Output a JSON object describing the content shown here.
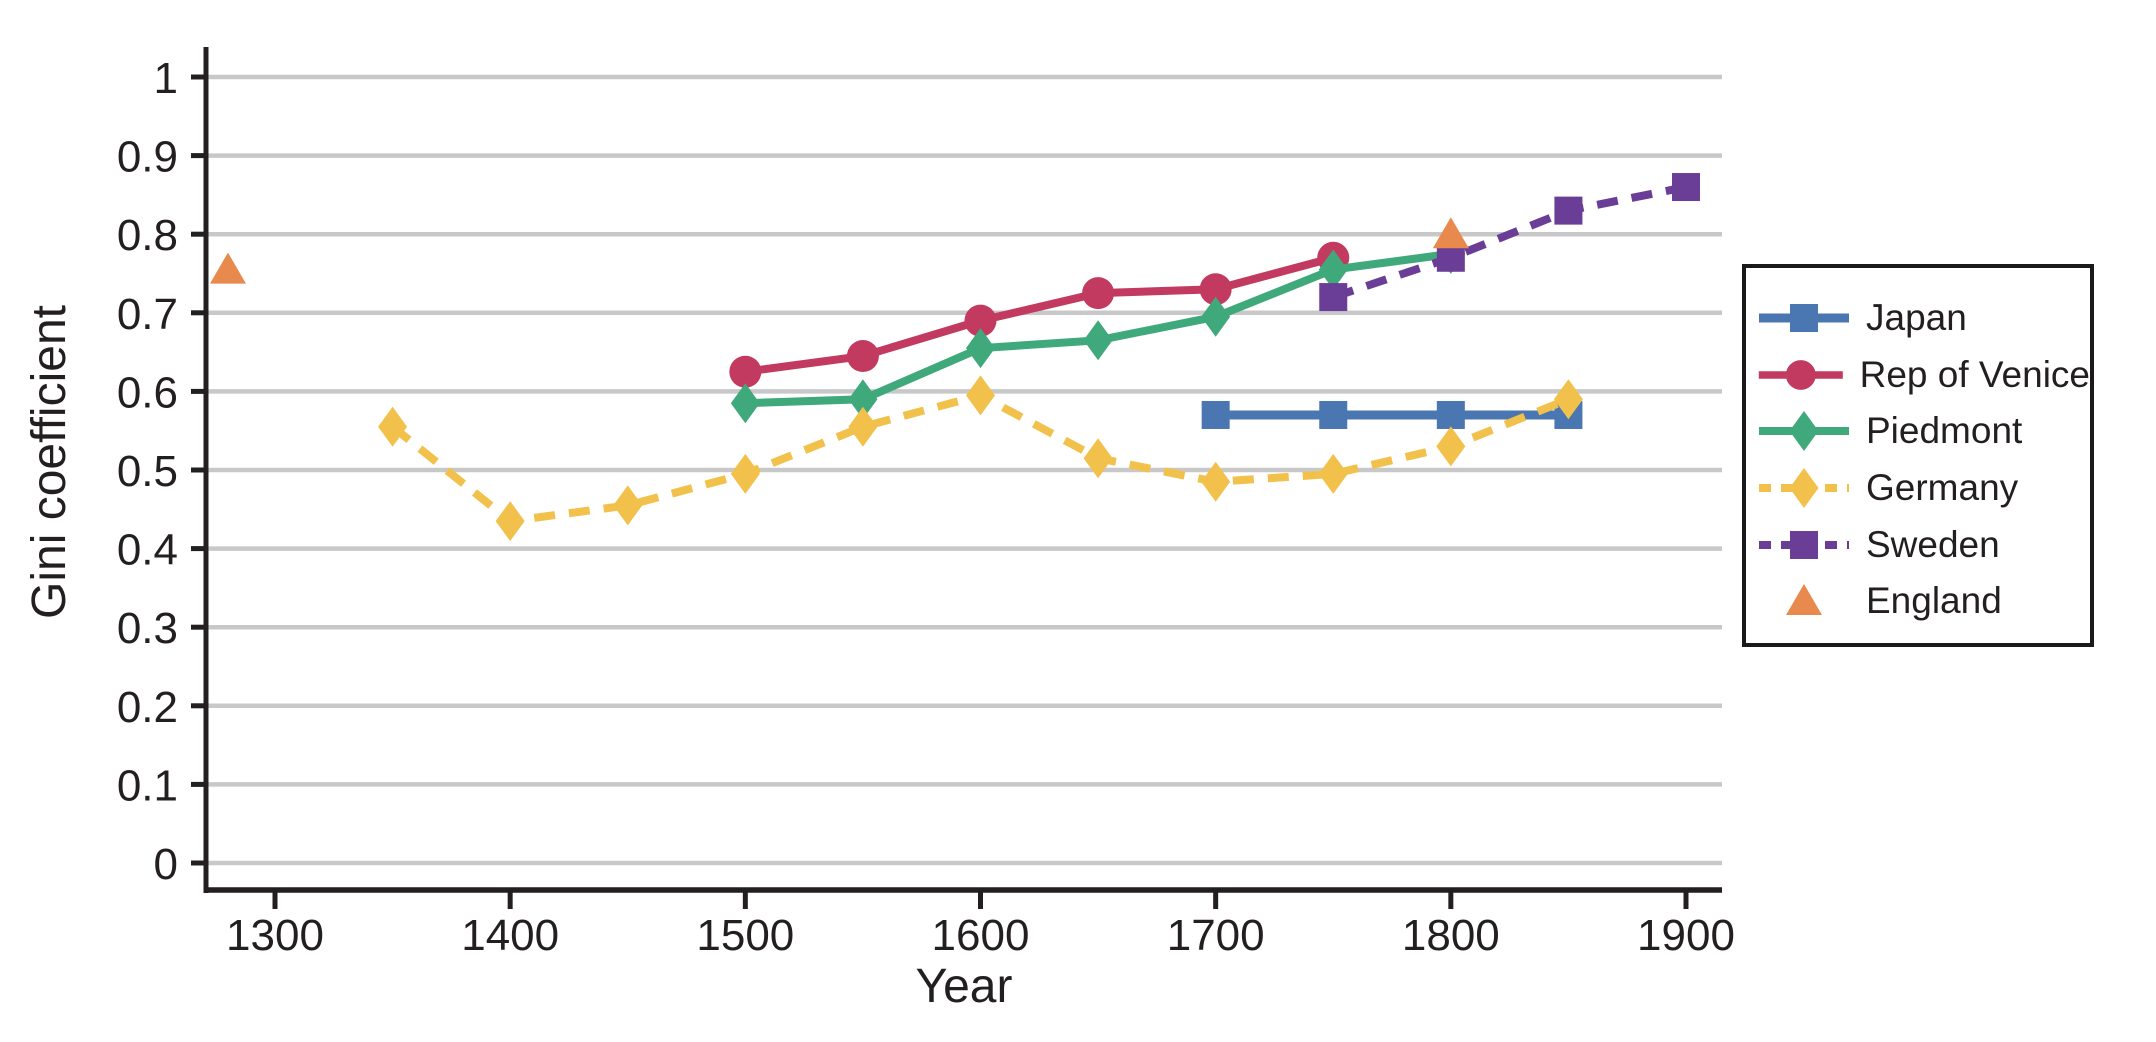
{
  "figure": {
    "background": "#ffffff",
    "text_color": "#231f20"
  },
  "chart_data": {
    "type": "line",
    "title": "",
    "xlabel": "Year",
    "ylabel": "Gini coefficient",
    "xlim": [
      1270,
      1915
    ],
    "ylim": [
      0,
      1.04
    ],
    "grid": "horizontal",
    "grid_color": "#c8c8c8",
    "axis_color": "#231f20",
    "legend_position": "right-outside",
    "x_ticks": [
      {
        "year": 1300,
        "label": "1300"
      },
      {
        "year": 1400,
        "label": "1400"
      },
      {
        "year": 1500,
        "label": "1500"
      },
      {
        "year": 1600,
        "label": "1600"
      },
      {
        "year": 1700,
        "label": "1700"
      },
      {
        "year": 1800,
        "label": "1800"
      },
      {
        "year": 1900,
        "label": "1900"
      }
    ],
    "y_ticks": [
      {
        "value": 0,
        "label": "0"
      },
      {
        "value": 0.1,
        "label": "0.1"
      },
      {
        "value": 0.2,
        "label": "0.2"
      },
      {
        "value": 0.3,
        "label": "0.3"
      },
      {
        "value": 0.4,
        "label": "0.4"
      },
      {
        "value": 0.5,
        "label": "0.5"
      },
      {
        "value": 0.6,
        "label": "0.6"
      },
      {
        "value": 0.7,
        "label": "0.7"
      },
      {
        "value": 0.8,
        "label": "0.8"
      },
      {
        "value": 0.9,
        "label": "0.9"
      },
      {
        "value": 1,
        "label": "1"
      }
    ],
    "series": [
      {
        "name": "Japan",
        "color": "#4a76b2",
        "line_style": "solid",
        "line_width": 9,
        "marker": "square",
        "points": [
          [
            1700,
            0.57
          ],
          [
            1750,
            0.57
          ],
          [
            1800,
            0.57
          ],
          [
            1850,
            0.57
          ]
        ]
      },
      {
        "name": "Rep of Venice",
        "color": "#c23a60",
        "line_style": "solid",
        "line_width": 8,
        "marker": "circle",
        "points": [
          [
            1500,
            0.625
          ],
          [
            1550,
            0.645
          ],
          [
            1600,
            0.69
          ],
          [
            1650,
            0.725
          ],
          [
            1700,
            0.73
          ],
          [
            1750,
            0.77
          ]
        ]
      },
      {
        "name": "Piedmont",
        "color": "#3fa97c",
        "line_style": "solid",
        "line_width": 8,
        "marker": "diamond",
        "points": [
          [
            1500,
            0.585
          ],
          [
            1550,
            0.59
          ],
          [
            1600,
            0.655
          ],
          [
            1650,
            0.665
          ],
          [
            1700,
            0.695
          ],
          [
            1750,
            0.755
          ],
          [
            1800,
            0.775
          ]
        ]
      },
      {
        "name": "Germany",
        "color": "#f2c14b",
        "line_style": "dashed",
        "line_width": 8,
        "marker": "diamond",
        "points": [
          [
            1350,
            0.555
          ],
          [
            1400,
            0.435
          ],
          [
            1450,
            0.455
          ],
          [
            1500,
            0.495
          ],
          [
            1550,
            0.555
          ],
          [
            1600,
            0.595
          ],
          [
            1650,
            0.515
          ],
          [
            1700,
            0.485
          ],
          [
            1750,
            0.495
          ],
          [
            1800,
            0.53
          ],
          [
            1850,
            0.59
          ]
        ]
      },
      {
        "name": "Sweden",
        "color": "#6a3d96",
        "line_style": "dashed",
        "line_width": 8,
        "marker": "square",
        "points": [
          [
            1750,
            0.72
          ],
          [
            1800,
            0.77
          ],
          [
            1850,
            0.83
          ],
          [
            1900,
            0.86
          ]
        ]
      },
      {
        "name": "England",
        "color": "#e88a4d",
        "line_style": "none",
        "line_width": 0,
        "marker": "triangle",
        "points": [
          [
            1280,
            0.755
          ],
          [
            1800,
            0.8
          ]
        ]
      }
    ],
    "draw_order": [
      1,
      2,
      4,
      0,
      3,
      5
    ]
  }
}
